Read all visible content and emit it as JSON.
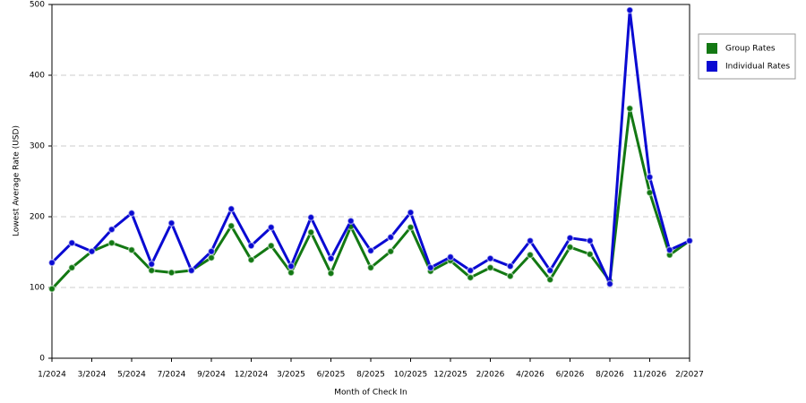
{
  "chart_data": {
    "type": "line",
    "x_label": "Month of Check In",
    "y_label": "Lowest Average Rate (USD)",
    "categories": [
      "1/2024",
      null,
      "3/2024",
      null,
      "5/2024",
      null,
      "7/2024",
      null,
      "9/2024",
      null,
      "12/2024",
      null,
      "3/2025",
      null,
      "6/2025",
      null,
      "8/2025",
      null,
      "10/2025",
      null,
      "12/2025",
      null,
      "2/2026",
      null,
      "4/2026",
      null,
      "6/2026",
      null,
      "8/2026",
      null,
      "11/2026",
      null,
      "2/2027"
    ],
    "series": [
      {
        "name": "Group Rates",
        "color": "#137813",
        "values": [
          98,
          128,
          151,
          163,
          153,
          124,
          121,
          124,
          142,
          187,
          139,
          159,
          121,
          178,
          120,
          186,
          128,
          151,
          185,
          123,
          138,
          114,
          128,
          116,
          146,
          111,
          157,
          147,
          109,
          353,
          234,
          146,
          166
        ]
      },
      {
        "name": "Individual Rates",
        "color": "#0a0ad2",
        "values": [
          135,
          163,
          151,
          182,
          205,
          133,
          191,
          124,
          151,
          211,
          159,
          185,
          130,
          199,
          141,
          194,
          152,
          171,
          206,
          128,
          143,
          124,
          141,
          130,
          166,
          124,
          170,
          166,
          105,
          492,
          256,
          153,
          166
        ]
      }
    ],
    "ylim": [
      0,
      500
    ],
    "yticks": [
      0,
      100,
      200,
      300,
      400,
      500
    ],
    "grid": true,
    "legend": "right"
  }
}
